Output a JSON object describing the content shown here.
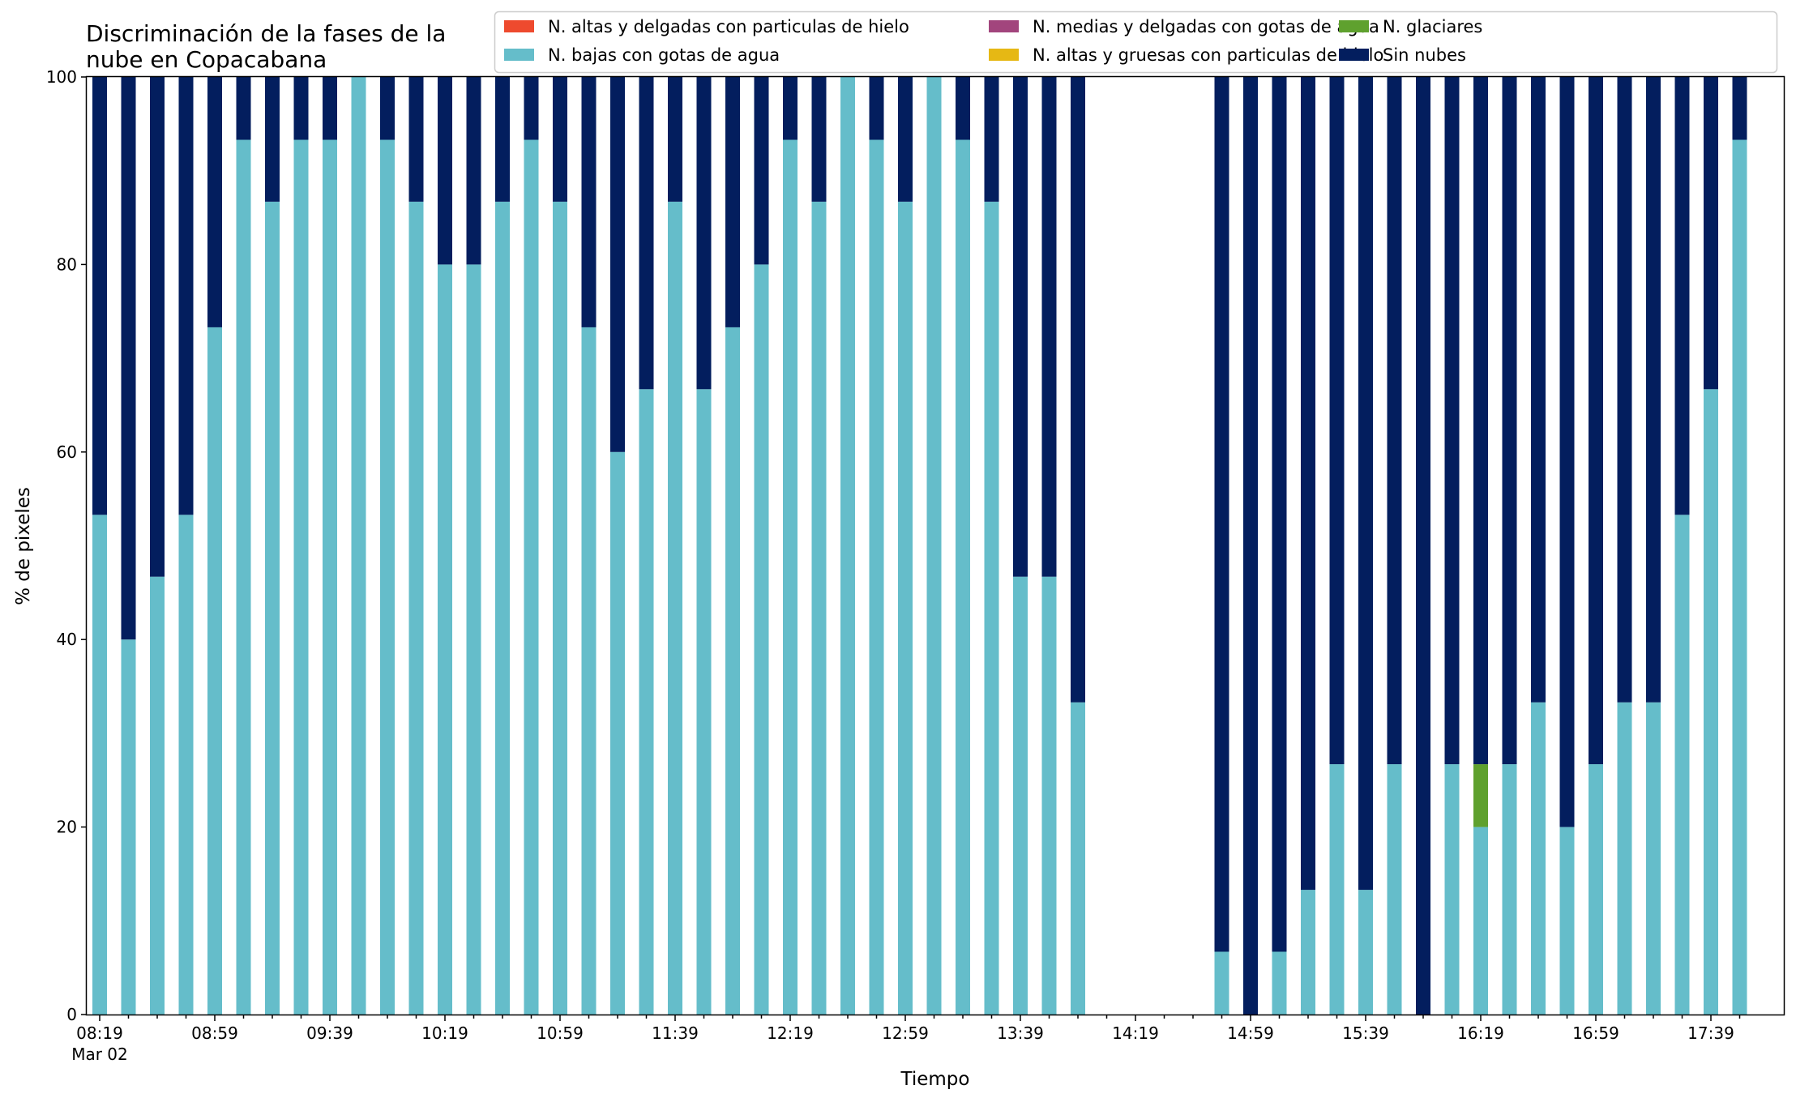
{
  "chart_data": {
    "type": "bar",
    "stacked": true,
    "title": "Discriminación de la fases de la\nnube en Copacabana",
    "xlabel": "Tiempo",
    "ylabel": "% de pixeles",
    "ylim": [
      0,
      100
    ],
    "yticks": [
      0,
      20,
      40,
      60,
      80,
      100
    ],
    "grid": false,
    "legend_position": "top-right",
    "start_time": "08:19",
    "interval_minutes": 10,
    "x_tick_labels": [
      "08:19",
      "08:59",
      "09:39",
      "10:19",
      "10:59",
      "11:39",
      "12:19",
      "12:59",
      "13:39",
      "14:19",
      "14:59",
      "15:39",
      "16:19",
      "16:59",
      "17:39"
    ],
    "x_date_label": "Mar 02",
    "categories": [
      "08:19",
      "08:29",
      "08:39",
      "08:49",
      "08:59",
      "09:09",
      "09:19",
      "09:29",
      "09:39",
      "09:49",
      "09:59",
      "10:09",
      "10:19",
      "10:29",
      "10:39",
      "10:49",
      "10:59",
      "11:09",
      "11:19",
      "11:29",
      "11:39",
      "11:49",
      "11:59",
      "12:09",
      "12:19",
      "12:29",
      "12:39",
      "12:49",
      "12:59",
      "13:09",
      "13:19",
      "13:29",
      "13:39",
      "13:49",
      "13:59",
      "14:09",
      "14:19",
      "14:29",
      "14:39",
      "14:49",
      "14:59",
      "15:09",
      "15:19",
      "15:29",
      "15:39",
      "15:49",
      "15:59",
      "16:09",
      "16:19",
      "16:29",
      "16:39",
      "16:49",
      "16:59",
      "17:09",
      "17:19",
      "17:29",
      "17:39",
      "17:49"
    ],
    "series": [
      {
        "name": "N. altas y delgadas con particulas de hielo",
        "color": "#ee4a2e",
        "values": [
          0,
          0,
          0,
          0,
          0,
          0,
          0,
          0,
          0,
          0,
          0,
          0,
          0,
          0,
          0,
          0,
          0,
          0,
          0,
          0,
          0,
          0,
          0,
          0,
          0,
          0,
          0,
          0,
          0,
          0,
          0,
          0,
          0,
          0,
          0,
          null,
          null,
          null,
          null,
          0,
          0,
          0,
          0,
          0,
          0,
          0,
          0,
          0,
          0,
          0,
          0,
          0,
          0,
          0,
          0,
          0,
          0,
          0
        ]
      },
      {
        "name": "N. altas y gruesas con particulas de hielo",
        "color": "#e6b814",
        "values": [
          0,
          0,
          0,
          0,
          0,
          0,
          0,
          0,
          0,
          0,
          0,
          0,
          0,
          0,
          0,
          0,
          0,
          0,
          0,
          0,
          0,
          0,
          0,
          0,
          0,
          0,
          0,
          0,
          0,
          0,
          0,
          0,
          0,
          0,
          0,
          null,
          null,
          null,
          null,
          0,
          0,
          0,
          0,
          0,
          0,
          0,
          0,
          0,
          0,
          0,
          0,
          0,
          0,
          0,
          0,
          0,
          0,
          0
        ]
      },
      {
        "name": "N. bajas con gotas de agua",
        "color": "#65bdca",
        "values": [
          53.3,
          40,
          46.7,
          53.3,
          73.3,
          93.3,
          86.7,
          93.3,
          93.3,
          100,
          93.3,
          86.7,
          80,
          80,
          86.7,
          93.3,
          86.7,
          73.3,
          60,
          66.7,
          86.7,
          66.7,
          73.3,
          80,
          93.3,
          86.7,
          100,
          93.3,
          86.7,
          100,
          93.3,
          86.7,
          46.7,
          46.7,
          33.3,
          null,
          null,
          null,
          null,
          6.7,
          0,
          6.7,
          13.3,
          26.7,
          13.3,
          26.7,
          0,
          26.7,
          20,
          26.7,
          33.3,
          20,
          26.7,
          33.3,
          33.3,
          53.3,
          66.7,
          93.3
        ]
      },
      {
        "name": "N. glaciares",
        "color": "#5fa12e",
        "values": [
          0,
          0,
          0,
          0,
          0,
          0,
          0,
          0,
          0,
          0,
          0,
          0,
          0,
          0,
          0,
          0,
          0,
          0,
          0,
          0,
          0,
          0,
          0,
          0,
          0,
          0,
          0,
          0,
          0,
          0,
          0,
          0,
          0,
          0,
          0,
          null,
          null,
          null,
          null,
          0,
          0,
          0,
          0,
          0,
          0,
          0,
          0,
          0,
          6.7,
          0,
          0,
          0,
          0,
          0,
          0,
          0,
          0,
          0
        ]
      },
      {
        "name": "N. medias y delgadas con gotas de agua",
        "color": "#a2457d",
        "values": [
          0,
          0,
          0,
          0,
          0,
          0,
          0,
          0,
          0,
          0,
          0,
          0,
          0,
          0,
          0,
          0,
          0,
          0,
          0,
          0,
          0,
          0,
          0,
          0,
          0,
          0,
          0,
          0,
          0,
          0,
          0,
          0,
          0,
          0,
          0,
          null,
          null,
          null,
          null,
          0,
          0,
          0,
          0,
          0,
          0,
          0,
          0,
          0,
          0,
          0,
          0,
          0,
          0,
          0,
          0,
          0,
          0,
          0
        ]
      },
      {
        "name": "Sin nubes",
        "color": "#031e5e",
        "values": [
          46.7,
          60,
          53.3,
          46.7,
          26.7,
          6.7,
          13.3,
          6.7,
          6.7,
          0,
          6.7,
          13.3,
          20,
          20,
          13.3,
          6.7,
          13.3,
          26.7,
          40,
          33.3,
          13.3,
          33.3,
          26.7,
          20,
          6.7,
          13.3,
          0,
          6.7,
          13.3,
          0,
          6.7,
          13.3,
          53.3,
          53.3,
          66.7,
          null,
          null,
          null,
          null,
          93.3,
          100,
          93.3,
          86.7,
          73.3,
          86.7,
          73.3,
          100,
          73.3,
          73.3,
          73.3,
          66.7,
          80,
          73.3,
          66.7,
          66.7,
          46.7,
          33.3,
          6.7
        ]
      }
    ],
    "legend_order": [
      0,
      2,
      4,
      1,
      3,
      5
    ]
  }
}
